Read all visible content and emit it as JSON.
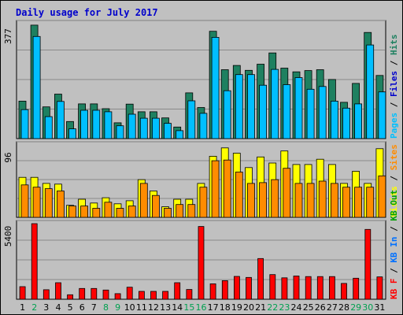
{
  "chart_data": [
    {
      "type": "bar",
      "title": "Daily usage for July 2017",
      "categories": [
        "1",
        "2",
        "3",
        "4",
        "5",
        "6",
        "7",
        "8",
        "9",
        "10",
        "11",
        "12",
        "13",
        "14",
        "15",
        "16",
        "17",
        "18",
        "19",
        "20",
        "21",
        "22",
        "23",
        "24",
        "25",
        "26",
        "27",
        "28",
        "29",
        "30",
        "31"
      ],
      "weekend_days": [
        "2",
        "8",
        "9",
        "15",
        "16",
        "22",
        "23",
        "29",
        "30"
      ],
      "ymax_label": "377",
      "ylim": [
        0,
        377
      ],
      "legend": [
        {
          "name": "Pages",
          "color": "#00bfff"
        },
        {
          "name": "Files",
          "color": "#0000cc"
        },
        {
          "name": "Hits",
          "color": "#1e8060"
        }
      ],
      "legend_sep": "/",
      "series": [
        {
          "name": "Hits",
          "color": "#1e8060",
          "values": [
            123,
            372,
            104,
            146,
            56,
            114,
            114,
            98,
            52,
            113,
            88,
            88,
            68,
            38,
            150,
            102,
            352,
            226,
            240,
            224,
            244,
            281,
            231,
            219,
            223,
            226,
            194,
            119,
            181,
            348,
            207
          ]
        },
        {
          "name": "Files",
          "color": "#00bfff",
          "values": [
            95,
            335,
            72,
            122,
            32,
            93,
            93,
            88,
            42,
            80,
            67,
            67,
            50,
            26,
            124,
            83,
            332,
            157,
            210,
            210,
            175,
            227,
            177,
            200,
            162,
            171,
            123,
            100,
            114,
            307,
            153
          ]
        }
      ]
    },
    {
      "type": "bar",
      "ymax_label": "96",
      "ylim": [
        0,
        96
      ],
      "legend": [
        {
          "name": "Visits",
          "color": "#ffff00"
        },
        {
          "name": "Sites",
          "color": "#ff8c00"
        }
      ],
      "legend_sep": "/",
      "series": [
        {
          "name": "Visits",
          "color": "#ffff00",
          "values": [
            53,
            53,
            45,
            44,
            16,
            24,
            19,
            26,
            18,
            22,
            50,
            35,
            14,
            24,
            24,
            45,
            81,
            92,
            85,
            66,
            80,
            72,
            88,
            70,
            70,
            77,
            70,
            45,
            61,
            45,
            91
          ]
        },
        {
          "name": "Sites",
          "color": "#ff8c00",
          "values": [
            43,
            40,
            38,
            35,
            15,
            15,
            12,
            20,
            12,
            15,
            45,
            29,
            12,
            17,
            17,
            40,
            75,
            76,
            60,
            45,
            46,
            50,
            65,
            45,
            45,
            48,
            45,
            40,
            40,
            40,
            55
          ]
        }
      ]
    },
    {
      "type": "bar",
      "ymax_label": "5400",
      "ylim": [
        0,
        5400
      ],
      "legend": [
        {
          "name": "KB F",
          "color": "#ff0000"
        },
        {
          "name": "KB In",
          "color": "#0070ff"
        },
        {
          "name": "KB Out",
          "color": "#00a000"
        }
      ],
      "legend_sep": "/",
      "series": [
        {
          "name": "KB F",
          "color": "#ff0000",
          "values": [
            900,
            5400,
            680,
            1180,
            320,
            770,
            770,
            660,
            400,
            860,
            560,
            560,
            560,
            1180,
            700,
            5200,
            1100,
            1330,
            1630,
            1560,
            2910,
            1760,
            1530,
            1660,
            1620,
            1620,
            1620,
            1130,
            1500,
            4990,
            1600
          ]
        }
      ]
    }
  ]
}
